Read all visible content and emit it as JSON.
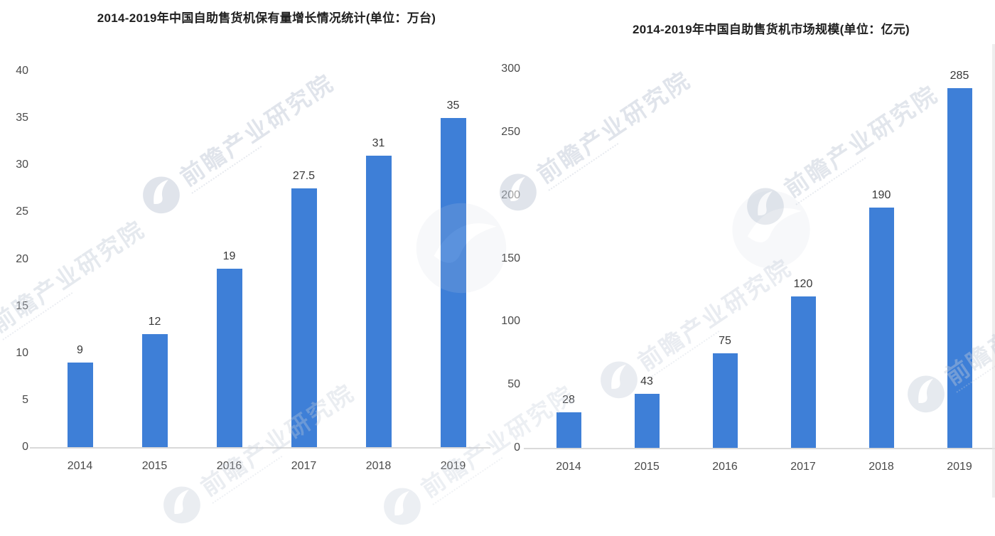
{
  "watermark": {
    "text": "前瞻产业研究院",
    "color": "#c3cbd9"
  },
  "chart_data": [
    {
      "type": "bar",
      "title": "2014-2019年中国自助售货机保有量增长情况统计(单位：万台)",
      "categories": [
        "2014",
        "2015",
        "2016",
        "2017",
        "2018",
        "2019"
      ],
      "values": [
        9,
        12,
        19,
        27.5,
        31,
        35
      ],
      "value_labels": [
        "9",
        "12",
        "19",
        "27.5",
        "31",
        "35"
      ],
      "ylim": [
        0,
        40
      ],
      "yticks": [
        0,
        5,
        10,
        15,
        20,
        25,
        30,
        35,
        40
      ],
      "xlabel": "",
      "ylabel": "",
      "unit": "万台",
      "bar_color": "#3e7fd7",
      "grid": false,
      "legend": "none"
    },
    {
      "type": "bar",
      "title": "2014-2019年中国自助售货机市场规模(单位：亿元)",
      "categories": [
        "2014",
        "2015",
        "2016",
        "2017",
        "2018",
        "2019"
      ],
      "values": [
        28,
        43,
        75,
        120,
        190,
        285
      ],
      "value_labels": [
        "28",
        "43",
        "75",
        "120",
        "190",
        "285"
      ],
      "ylim": [
        0,
        300
      ],
      "yticks": [
        0,
        50,
        100,
        150,
        200,
        250,
        300
      ],
      "xlabel": "",
      "ylabel": "",
      "unit": "亿元",
      "bar_color": "#3e7fd7",
      "grid": false,
      "legend": "none"
    }
  ]
}
